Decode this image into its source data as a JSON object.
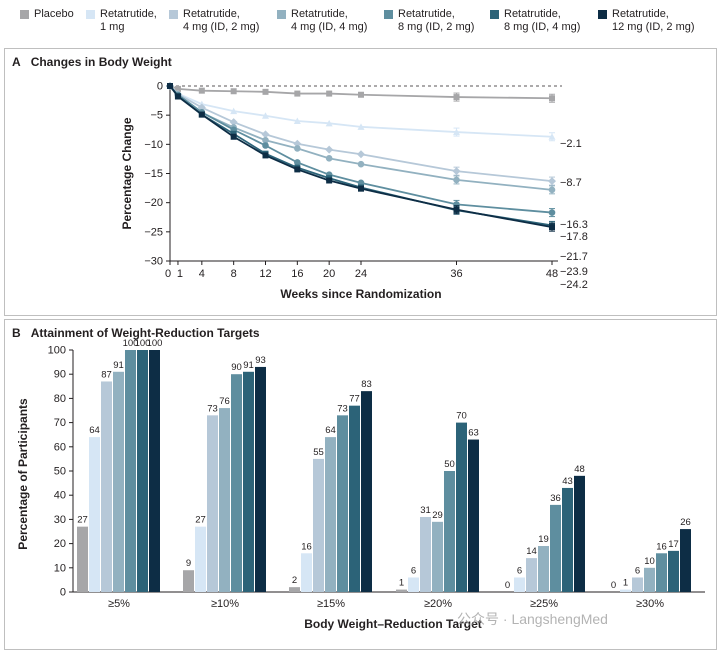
{
  "legend": [
    {
      "label": "Placebo",
      "color": "#a6a6a8"
    },
    {
      "label": "Retatrutide,\n1 mg",
      "color": "#d6e6f5"
    },
    {
      "label": "Retatrutide,\n4 mg (ID, 2 mg)",
      "color": "#b6c8d8"
    },
    {
      "label": "Retatrutide,\n4 mg (ID, 4 mg)",
      "color": "#92b1c0"
    },
    {
      "label": "Retatrutide,\n8 mg (ID, 2 mg)",
      "color": "#5e8e9f"
    },
    {
      "label": "Retatrutide,\n8 mg (ID, 4 mg)",
      "color": "#2c6378"
    },
    {
      "label": "Retatrutide,\n12 mg (ID, 2 mg)",
      "color": "#0d2d45"
    }
  ],
  "watermark": "公众号 · LangshengMed",
  "chart_data": [
    {
      "type": "line",
      "panel_letter": "A",
      "title": "Changes in Body Weight",
      "xlabel": "Weeks since Randomization",
      "ylabel": "Percentage Change",
      "x": [
        0,
        1,
        4,
        8,
        12,
        16,
        20,
        24,
        36,
        48
      ],
      "xticks": [
        "0",
        "1",
        "4",
        "8",
        "12",
        "16",
        "20",
        "24",
        "36",
        "48"
      ],
      "yticks": [
        0,
        -5,
        -10,
        -15,
        -20,
        -25,
        -30
      ],
      "xlim": [
        0,
        48
      ],
      "ylim": [
        -30,
        0
      ],
      "reference_line": 0,
      "grid": false,
      "series": [
        {
          "name": "Placebo",
          "color": "#a6a6a8",
          "values": [
            0,
            -0.5,
            -0.8,
            -0.9,
            -1.0,
            -1.3,
            -1.3,
            -1.5,
            -1.9,
            -2.1
          ],
          "end_label": "−2.1"
        },
        {
          "name": "Retatrutide, 1 mg",
          "color": "#d6e6f5",
          "values": [
            0,
            -1.3,
            -3.1,
            -4.3,
            -5.1,
            -6.0,
            -6.4,
            -7.0,
            -7.9,
            -8.7
          ],
          "end_label": "−8.7"
        },
        {
          "name": "Retatrutide, 4 mg (ID, 2 mg)",
          "color": "#b6c8d8",
          "values": [
            0,
            -1.4,
            -3.7,
            -6.2,
            -8.3,
            -9.9,
            -10.9,
            -11.7,
            -14.6,
            -16.3
          ],
          "end_label": "−16.3"
        },
        {
          "name": "Retatrutide, 4 mg (ID, 4 mg)",
          "color": "#92b1c0",
          "values": [
            0,
            -1.6,
            -4.6,
            -7.1,
            -9.3,
            -10.7,
            -12.4,
            -13.4,
            -16.1,
            -17.8
          ],
          "end_label": "−17.8"
        },
        {
          "name": "Retatrutide, 8 mg (ID, 2 mg)",
          "color": "#5e8e9f",
          "values": [
            0,
            -1.5,
            -4.5,
            -7.5,
            -10.2,
            -13.1,
            -15.2,
            -16.6,
            -20.3,
            -21.7
          ],
          "end_label": "−21.7"
        },
        {
          "name": "Retatrutide, 8 mg (ID, 4 mg)",
          "color": "#2c6378",
          "values": [
            0,
            -1.7,
            -4.9,
            -8.2,
            -11.6,
            -14.0,
            -15.8,
            -17.4,
            -21.3,
            -23.9
          ],
          "end_label": "−23.9"
        },
        {
          "name": "Retatrutide, 12 mg (ID, 2 mg)",
          "color": "#0d2d45",
          "values": [
            0,
            -1.8,
            -4.9,
            -8.7,
            -11.9,
            -14.3,
            -16.2,
            -17.6,
            -21.2,
            -24.2
          ],
          "end_label": "−24.2"
        }
      ]
    },
    {
      "type": "bar",
      "panel_letter": "B",
      "title": "Attainment of Weight-Reduction Targets",
      "xlabel": "Body Weight–Reduction Target",
      "ylabel": "Percentage of Participants",
      "categories": [
        "≥5%",
        "≥10%",
        "≥15%",
        "≥20%",
        "≥25%",
        "≥30%"
      ],
      "yticks": [
        0,
        10,
        20,
        30,
        40,
        50,
        60,
        70,
        80,
        90,
        100
      ],
      "ylim": [
        0,
        100
      ],
      "grid": false,
      "series": [
        {
          "name": "Placebo",
          "color": "#a6a6a8",
          "values": [
            27,
            9,
            2,
            1,
            0,
            0
          ]
        },
        {
          "name": "Retatrutide, 1 mg",
          "color": "#d6e6f5",
          "values": [
            64,
            27,
            16,
            6,
            6,
            1
          ]
        },
        {
          "name": "Retatrutide, 4 mg (ID, 2 mg)",
          "color": "#b6c8d8",
          "values": [
            87,
            73,
            55,
            31,
            14,
            6
          ]
        },
        {
          "name": "Retatrutide, 4 mg (ID, 4 mg)",
          "color": "#92b1c0",
          "values": [
            91,
            76,
            64,
            29,
            19,
            10
          ]
        },
        {
          "name": "Retatrutide, 8 mg (ID, 2 mg)",
          "color": "#5e8e9f",
          "values": [
            100,
            90,
            73,
            50,
            36,
            16
          ]
        },
        {
          "name": "Retatrutide, 8 mg (ID, 4 mg)",
          "color": "#2c6378",
          "values": [
            100,
            91,
            77,
            70,
            43,
            17
          ]
        },
        {
          "name": "Retatrutide, 12 mg (ID, 2 mg)",
          "color": "#0d2d45",
          "values": [
            100,
            93,
            83,
            63,
            48,
            26
          ]
        }
      ]
    }
  ]
}
